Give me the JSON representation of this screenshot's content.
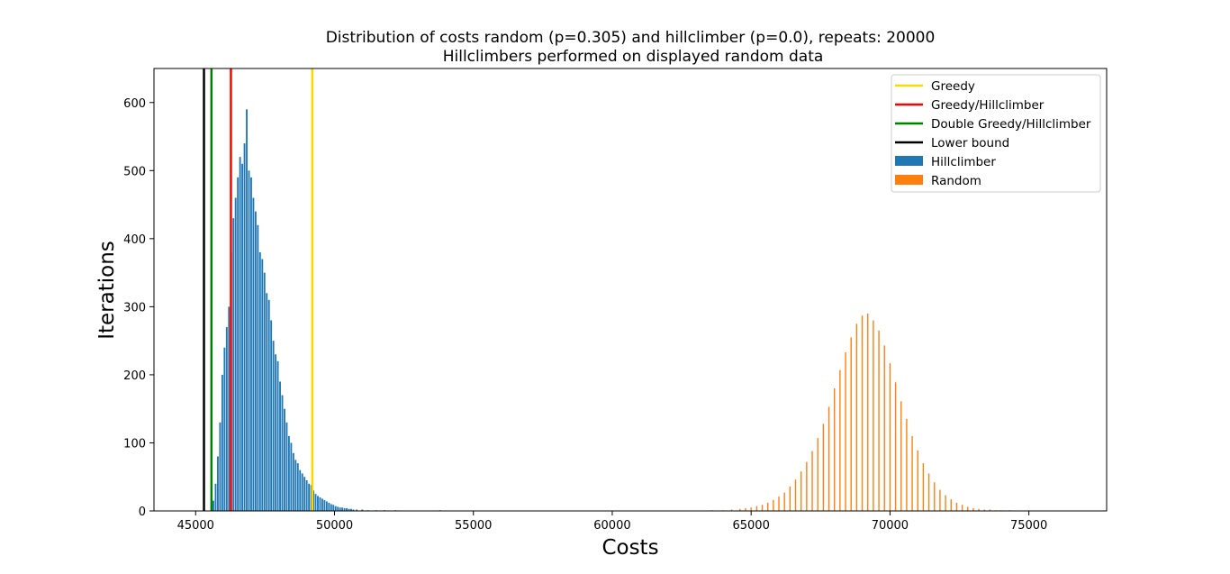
{
  "chart_data": {
    "type": "histogram",
    "title": "Distribution of costs random (p=0.305) and hillclimber (p=0.0), repeats: 20000",
    "subtitle": "Hillclimbers performed on displayed random data",
    "xlabel": "Costs",
    "ylabel": "Iterations",
    "xlim": [
      43500,
      77800
    ],
    "ylim": [
      0,
      650
    ],
    "x_ticks": [
      45000,
      50000,
      55000,
      60000,
      65000,
      70000,
      75000
    ],
    "y_ticks": [
      0,
      100,
      200,
      300,
      400,
      500,
      600
    ],
    "grid": false,
    "legend_position": "top-right",
    "vertical_lines": [
      {
        "name": "Greedy",
        "x": 49200,
        "color": "#ffd700"
      },
      {
        "name": "Greedy/Hillclimber",
        "x": 46270,
        "color": "#ff0000"
      },
      {
        "name": "Double Greedy/Hillclimber",
        "x": 45570,
        "color": "#008000"
      },
      {
        "name": "Lower bound",
        "x": 45300,
        "color": "#000000"
      }
    ],
    "series": [
      {
        "name": "Hillclimber",
        "color": "#1f77b4",
        "bin_width": 60,
        "bins": [
          [
            45640,
            15
          ],
          [
            45720,
            40
          ],
          [
            45800,
            80
          ],
          [
            45880,
            130
          ],
          [
            45960,
            200
          ],
          [
            46040,
            240
          ],
          [
            46120,
            270
          ],
          [
            46200,
            300
          ],
          [
            46280,
            380
          ],
          [
            46360,
            430
          ],
          [
            46440,
            460
          ],
          [
            46520,
            490
          ],
          [
            46600,
            520
          ],
          [
            46680,
            510
          ],
          [
            46760,
            540
          ],
          [
            46840,
            590
          ],
          [
            46920,
            500
          ],
          [
            47000,
            490
          ],
          [
            47080,
            460
          ],
          [
            47160,
            440
          ],
          [
            47240,
            420
          ],
          [
            47320,
            380
          ],
          [
            47400,
            370
          ],
          [
            47480,
            350
          ],
          [
            47560,
            320
          ],
          [
            47640,
            310
          ],
          [
            47720,
            280
          ],
          [
            47800,
            250
          ],
          [
            47880,
            230
          ],
          [
            47960,
            220
          ],
          [
            48040,
            190
          ],
          [
            48120,
            170
          ],
          [
            48200,
            150
          ],
          [
            48280,
            130
          ],
          [
            48360,
            110
          ],
          [
            48440,
            100
          ],
          [
            48520,
            85
          ],
          [
            48600,
            75
          ],
          [
            48680,
            70
          ],
          [
            48760,
            60
          ],
          [
            48840,
            55
          ],
          [
            48920,
            50
          ],
          [
            49000,
            45
          ],
          [
            49080,
            40
          ],
          [
            49160,
            38
          ],
          [
            49240,
            30
          ],
          [
            49320,
            25
          ],
          [
            49400,
            22
          ],
          [
            49480,
            20
          ],
          [
            49560,
            18
          ],
          [
            49640,
            16
          ],
          [
            49720,
            14
          ],
          [
            49800,
            12
          ],
          [
            49880,
            10
          ],
          [
            49960,
            9
          ],
          [
            50040,
            7
          ],
          [
            50120,
            6
          ],
          [
            50200,
            5
          ],
          [
            50280,
            5
          ],
          [
            50360,
            4
          ],
          [
            50440,
            4
          ],
          [
            50520,
            3
          ],
          [
            50600,
            3
          ],
          [
            50680,
            2
          ],
          [
            50800,
            2
          ],
          [
            51000,
            2
          ],
          [
            51200,
            1
          ],
          [
            51500,
            1
          ],
          [
            51800,
            1
          ],
          [
            52200,
            1
          ],
          [
            53800,
            1
          ]
        ]
      },
      {
        "name": "Random",
        "color": "#ff7f0e",
        "bin_width": 45,
        "bins": [
          [
            63600,
            1
          ],
          [
            64000,
            1
          ],
          [
            64300,
            2
          ],
          [
            64600,
            3
          ],
          [
            64800,
            4
          ],
          [
            65000,
            5
          ],
          [
            65200,
            7
          ],
          [
            65400,
            9
          ],
          [
            65600,
            12
          ],
          [
            65800,
            16
          ],
          [
            66000,
            21
          ],
          [
            66200,
            27
          ],
          [
            66400,
            36
          ],
          [
            66600,
            46
          ],
          [
            66800,
            58
          ],
          [
            67000,
            72
          ],
          [
            67200,
            88
          ],
          [
            67400,
            107
          ],
          [
            67600,
            128
          ],
          [
            67800,
            153
          ],
          [
            68000,
            180
          ],
          [
            68200,
            207
          ],
          [
            68400,
            233
          ],
          [
            68600,
            255
          ],
          [
            68800,
            275
          ],
          [
            69000,
            287
          ],
          [
            69200,
            290
          ],
          [
            69400,
            280
          ],
          [
            69600,
            265
          ],
          [
            69800,
            243
          ],
          [
            70000,
            217
          ],
          [
            70200,
            189
          ],
          [
            70400,
            161
          ],
          [
            70600,
            135
          ],
          [
            70800,
            110
          ],
          [
            71000,
            89
          ],
          [
            71200,
            70
          ],
          [
            71400,
            55
          ],
          [
            71600,
            42
          ],
          [
            71800,
            31
          ],
          [
            72000,
            23
          ],
          [
            72200,
            17
          ],
          [
            72400,
            12
          ],
          [
            72600,
            9
          ],
          [
            72800,
            6
          ],
          [
            73000,
            4
          ],
          [
            73200,
            3
          ],
          [
            73400,
            2
          ],
          [
            73600,
            2
          ],
          [
            73800,
            1
          ],
          [
            74000,
            1
          ],
          [
            74300,
            1
          ]
        ]
      }
    ]
  }
}
